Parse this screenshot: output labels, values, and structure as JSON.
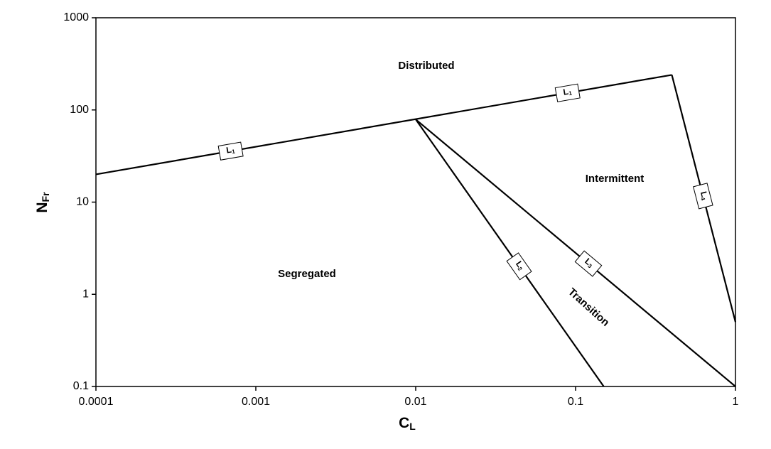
{
  "chart_data": {
    "type": "line",
    "xlabel": "CL",
    "ylabel": "NFr",
    "xscale": "log",
    "yscale": "log",
    "xlim": [
      0.0001,
      1
    ],
    "ylim": [
      0.1,
      1000
    ],
    "xticks": [
      0.0001,
      0.001,
      0.01,
      0.1,
      1
    ],
    "yticks": [
      0.1,
      1,
      10,
      100,
      1000
    ],
    "grid": false,
    "series": [
      {
        "name": "L1",
        "color": "#000000",
        "x": [
          0.0001,
          0.4
        ],
        "values": [
          20,
          240
        ]
      },
      {
        "name": "L2",
        "color": "#000000",
        "x": [
          0.01,
          0.15
        ],
        "values": [
          79,
          0.1
        ]
      },
      {
        "name": "L3",
        "color": "#000000",
        "x": [
          0.01,
          1
        ],
        "values": [
          79,
          0.1
        ]
      },
      {
        "name": "L4",
        "color": "#000000",
        "x": [
          0.4,
          1
        ],
        "values": [
          240,
          0.5
        ]
      }
    ],
    "annotations": [
      "Distributed",
      "Intermittent",
      "Segregated",
      "Transition"
    ]
  }
}
